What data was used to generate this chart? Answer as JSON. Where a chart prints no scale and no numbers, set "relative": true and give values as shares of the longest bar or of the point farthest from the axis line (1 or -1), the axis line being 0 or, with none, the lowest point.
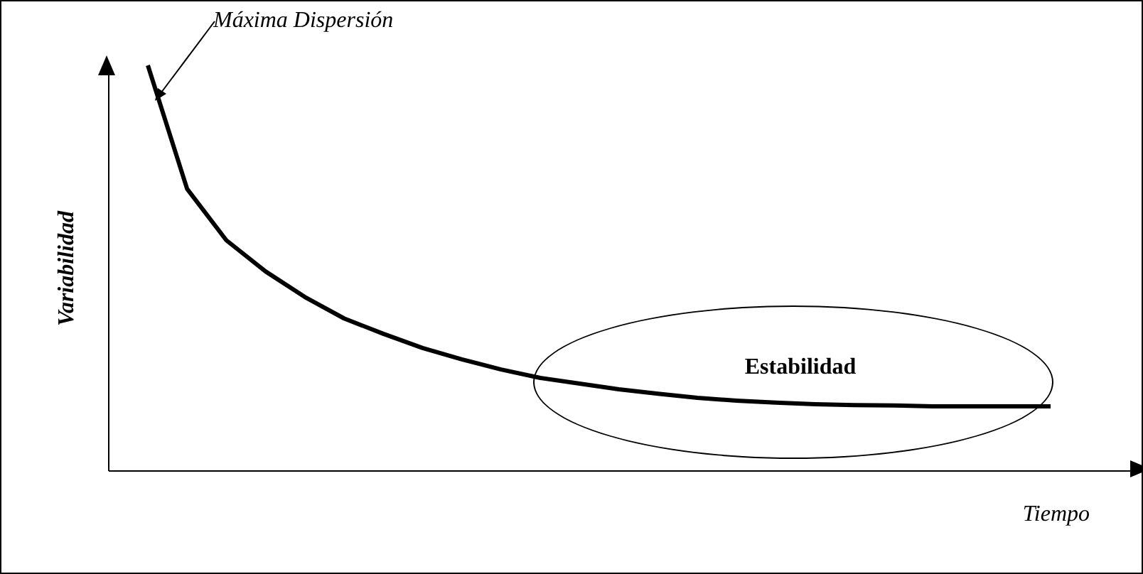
{
  "chart_data": {
    "type": "line",
    "relative": true,
    "xlabel": "Tiempo",
    "ylabel": "Variabilidad",
    "marker": "none",
    "line_style": "solid",
    "categories": [
      null,
      null,
      null,
      null,
      null,
      null,
      null,
      null,
      null,
      null,
      null,
      null,
      null,
      null,
      null,
      null,
      null,
      null,
      null,
      null,
      null,
      null,
      null,
      null
    ],
    "series": [
      {
        "color": "#000000",
        "values": [
          1.0,
          0.695,
          0.568,
          0.491,
          0.428,
          0.375,
          0.337,
          0.302,
          0.274,
          0.249,
          0.228,
          0.214,
          0.2,
          0.189,
          0.179,
          0.172,
          0.167,
          0.163,
          0.161,
          0.16,
          0.158,
          0.158,
          0.158,
          0.158
        ]
      }
    ],
    "annotations": [
      "Máxima Dispersión",
      "Estabilidad"
    ]
  }
}
